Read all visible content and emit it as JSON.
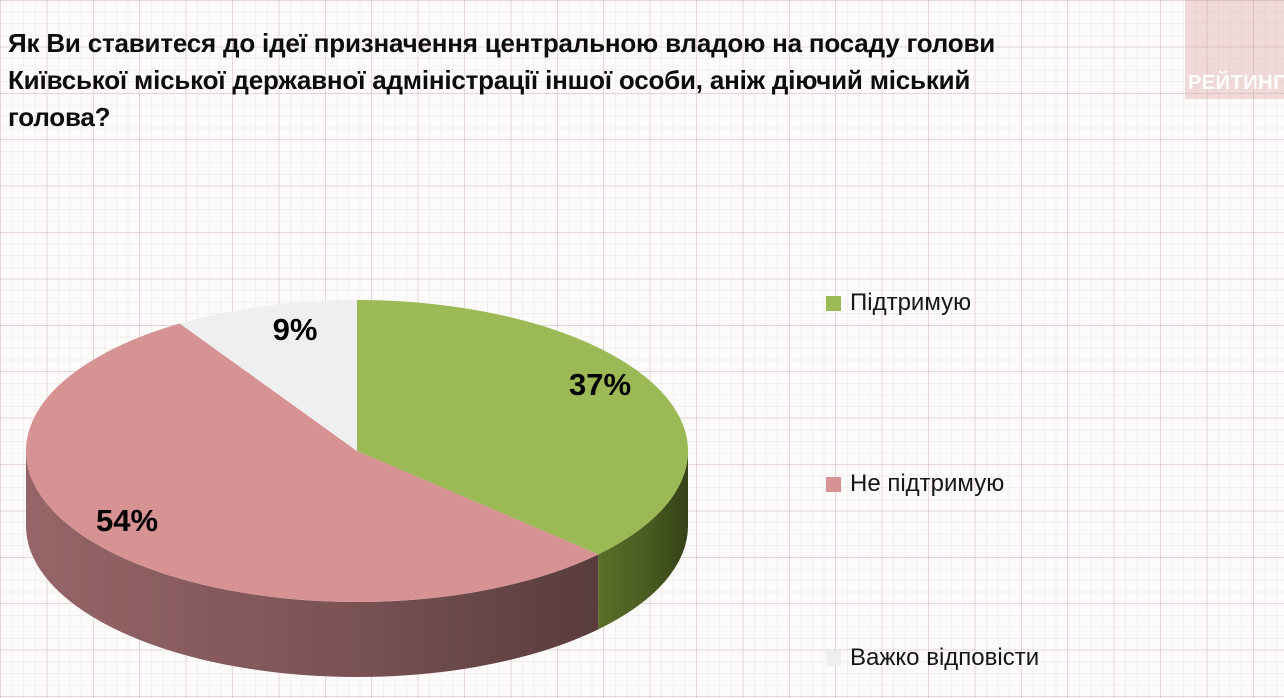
{
  "title": {
    "full": "Як Ви ставитеся до ідеї призначення центральною владою на посаду голови Київської міської державної адміністрації іншої особи, аніж діючий міський голова?",
    "lines": [
      "Як Ви ставитеся до ідеї призначення центральною владою на посаду голови",
      "Київської міської державної адміністрації іншої особи, аніж діючий міський",
      "голова?"
    ]
  },
  "logo": {
    "text": "РЕЙТИНГ",
    "bg_color": "rgba(216,150,150,0.32)",
    "text_color": "#FFFFFF"
  },
  "chart_data": {
    "type": "pie",
    "style": "3d",
    "title": "Як Ви ставитеся до ідеї призначення центральною владою на посаду голови Київської міської державної адміністрації іншої особи, аніж діючий міський голова?",
    "start_angle_deg": 0,
    "direction": "clockwise",
    "legend_position": "right",
    "categories": [
      "Підтримую",
      "Не підтримую",
      "Важко відповісти"
    ],
    "values": [
      37,
      54,
      9
    ],
    "slices": [
      {
        "label": "Підтримую",
        "value": 37,
        "data_label": "37%",
        "color": "#9BBA55",
        "side_color": "#4A5B21"
      },
      {
        "label": "Не підтримую",
        "value": 54,
        "data_label": "54%",
        "color": "#D79294",
        "side_color": "#7B5355"
      },
      {
        "label": "Важко відповісти",
        "value": 9,
        "data_label": "9%",
        "color": "#EFEFEF",
        "side_color": "#C9C9C9"
      }
    ]
  }
}
